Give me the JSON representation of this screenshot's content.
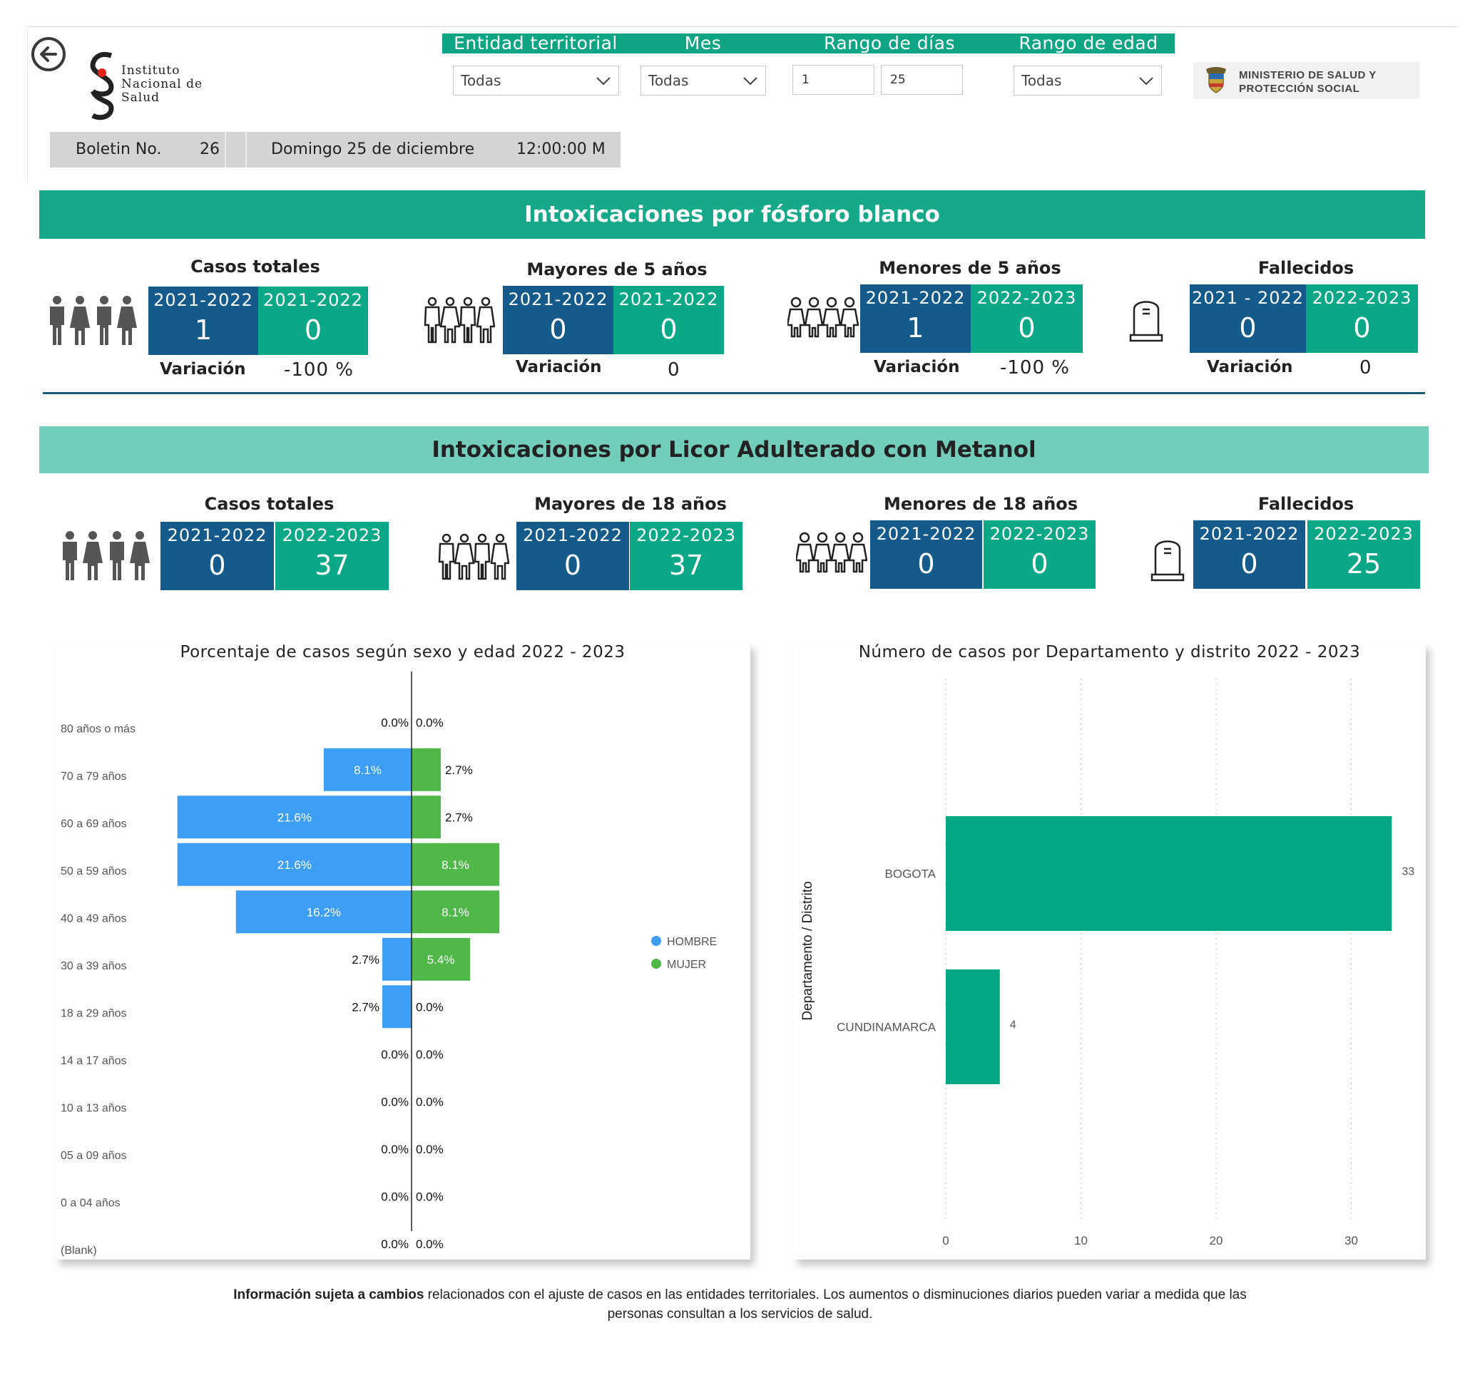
{
  "header": {
    "logo_ins": [
      "Instituto",
      "Nacional de",
      "Salud"
    ],
    "ministry_logo": [
      "MINISTERIO DE SALUD Y",
      "PROTECCIÓN SOCIAL"
    ]
  },
  "filters": {
    "entidad": {
      "label": "Entidad territorial",
      "value": "Todas"
    },
    "mes": {
      "label": "Mes",
      "value": "Todas"
    },
    "rango_dias": {
      "label": "Rango de días",
      "from": "1",
      "to": "25"
    },
    "rango_edad": {
      "label": "Rango de edad",
      "value": "Todas"
    }
  },
  "bulletin": {
    "label": "Boletin No.",
    "number": "26",
    "date": "Domingo 25 de diciembre",
    "time": "12:00:00 M"
  },
  "section1": {
    "title": "Intoxicaciones por fósforo blanco",
    "variation_label": "Variación",
    "kpis": [
      {
        "title": "Casos totales",
        "icon": "people-icon",
        "y1": "2021-2022",
        "v1": "1",
        "y2": "2021-2022",
        "v2": "0",
        "variation": "-100 %"
      },
      {
        "title": "Mayores de 5 años",
        "icon": "people-outline-icon",
        "y1": "2021-2022",
        "v1": "0",
        "y2": "2021-2022",
        "v2": "0",
        "variation": "0"
      },
      {
        "title": "Menores de 5 años",
        "icon": "children-icon",
        "y1": "2021-2022",
        "v1": "1",
        "y2": "2022-2023",
        "v2": "0",
        "variation": "-100 %"
      },
      {
        "title": "Fallecidos",
        "icon": "tombstone-icon",
        "y1": "2021 - 2022",
        "v1": "0",
        "y2": "2022-2023",
        "v2": "0",
        "variation": "0"
      }
    ]
  },
  "section2": {
    "title": "Intoxicaciones por Licor Adulterado con Metanol",
    "kpis": [
      {
        "title": "Casos totales",
        "icon": "people-icon",
        "y1": "2021-2022",
        "v1": "0",
        "y2": "2022-2023",
        "v2": "37"
      },
      {
        "title": "Mayores de 18 años",
        "icon": "people-outline-icon",
        "y1": "2021-2022",
        "v1": "0",
        "y2": "2022-2023",
        "v2": "37"
      },
      {
        "title": "Menores de 18 años",
        "icon": "children-icon",
        "y1": "2021-2022",
        "v1": "0",
        "y2": "2022-2023",
        "v2": "0"
      },
      {
        "title": "Fallecidos",
        "icon": "tombstone-icon",
        "y1": "2021-2022",
        "v1": "0",
        "y2": "2022-2023",
        "v2": "25"
      }
    ]
  },
  "colors": {
    "green_dark": "#0aa887",
    "blue_dark": "#145a8a",
    "hombre": "#3d9ef5",
    "mujer": "#4fb848",
    "bar_depto": "#03a685"
  },
  "chart_data": [
    {
      "type": "bar",
      "orientation": "horizontal-butterfly",
      "title": "Porcentaje de casos según sexo y edad 2022 - 2023",
      "categories": [
        "80 años o más",
        "70 a 79 años",
        "60 a 69 años",
        "50 a 59 años",
        "40 a 49 años",
        "30 a 39 años",
        "18 a 29 años",
        "14 a 17 años",
        "10 a 13 años",
        "05 a 09 años",
        "0 a 04 años",
        "(Blank)"
      ],
      "series": [
        {
          "name": "HOMBRE",
          "values": [
            0.0,
            8.1,
            21.6,
            21.6,
            16.2,
            2.7,
            2.7,
            0.0,
            0.0,
            0.0,
            0.0,
            0.0
          ]
        },
        {
          "name": "MUJER",
          "values": [
            0.0,
            2.7,
            2.7,
            8.1,
            8.1,
            5.4,
            0.0,
            0.0,
            0.0,
            0.0,
            0.0,
            0.0
          ]
        }
      ],
      "labels": {
        "HOMBRE": [
          "0.0%",
          "8.1%",
          "21.6%",
          "21.6%",
          "16.2%",
          "2.7%",
          "2.7%",
          "0.0%",
          "0.0%",
          "0.0%",
          "0.0%",
          "0.0%"
        ],
        "MUJER": [
          "0.0%",
          "2.7%",
          "2.7%",
          "8.1%",
          "8.1%",
          "5.4%",
          "0.0%",
          "0.0%",
          "0.0%",
          "0.0%",
          "0.0%",
          "0.0%"
        ]
      },
      "legend": "right"
    },
    {
      "type": "bar",
      "orientation": "horizontal",
      "title": "Número de casos por Departamento y distrito 2022 - 2023",
      "categories": [
        "BOGOTA",
        "CUNDINAMARCA"
      ],
      "values": [
        33,
        4
      ],
      "ylabel": "Departamento / Distrito",
      "xlim": [
        0,
        35
      ],
      "xticks": [
        "0",
        "10",
        "20",
        "30"
      ],
      "grid": true
    }
  ],
  "footnote": {
    "bold": "Información sujeta a cambios",
    "text": " relacionados con el ajuste de casos en las entidades territoriales. Los aumentos o disminuciones diarios pueden variar a medida que las personas consultan a los servicios de salud."
  }
}
